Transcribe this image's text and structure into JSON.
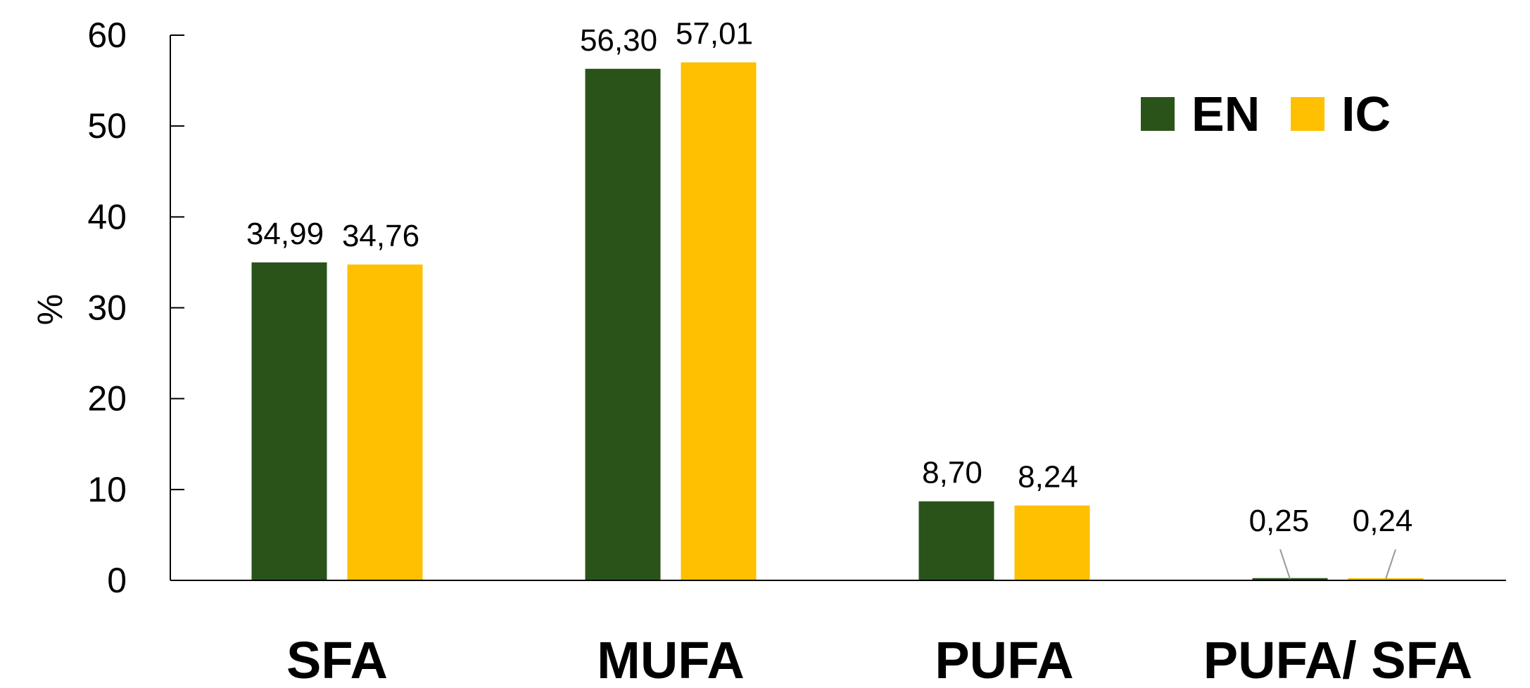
{
  "chart_data": {
    "type": "bar",
    "categories": [
      "SFA",
      "MUFA",
      "PUFA",
      "PUFA/ SFA"
    ],
    "series": [
      {
        "name": "EN",
        "color": "#2a5319",
        "values": [
          34.99,
          56.3,
          8.7,
          0.25
        ],
        "labels": [
          "34,99",
          "56,30",
          "8,70",
          "0,25"
        ]
      },
      {
        "name": "IC",
        "color": "#fec000",
        "values": [
          34.76,
          57.01,
          8.24,
          0.24
        ],
        "labels": [
          "34,76",
          "57,01",
          "8,24",
          "0,24"
        ]
      }
    ],
    "ylabel": "%",
    "ylim": [
      0,
      60
    ],
    "yticks": [
      0,
      10,
      20,
      30,
      40,
      50,
      60
    ],
    "legend": "top-right",
    "grid": false
  }
}
